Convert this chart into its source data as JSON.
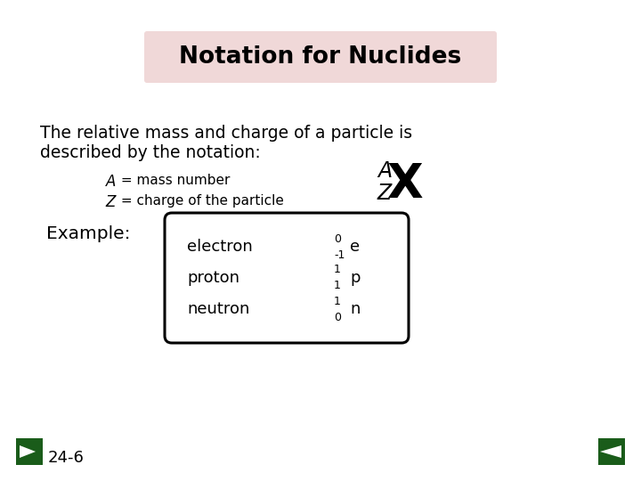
{
  "title": "Notation for Nuclides",
  "title_bg": "#f0d8d8",
  "bg_color": "#ffffff",
  "body_line1": "The relative mass and charge of a particle is",
  "body_line2": "described by the notation:",
  "def_A": " = mass number",
  "def_Z": " = charge of the particle",
  "example_label": "Example:",
  "particles": [
    "electron",
    "proton",
    "neutron"
  ],
  "particle_symbols": [
    "e",
    "p",
    "n"
  ],
  "particle_superscripts": [
    "0",
    "1",
    "1"
  ],
  "particle_subscripts": [
    "-1",
    "1",
    "0"
  ],
  "footnote": "24-6",
  "nav_color": "#1a5c1a",
  "text_color": "#000000"
}
